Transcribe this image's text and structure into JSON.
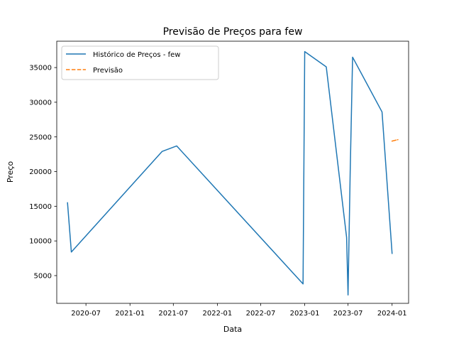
{
  "chart_data": {
    "type": "line",
    "title": "Previsão de Preços para few",
    "xlabel": "Data",
    "ylabel": "Preço",
    "xlim": [
      "2020-03-01",
      "2024-03-10"
    ],
    "ylim": [
      1000,
      38800
    ],
    "x_ticks": [
      {
        "date": "2020-07-01",
        "label": "2020-07"
      },
      {
        "date": "2021-01-01",
        "label": "2021-01"
      },
      {
        "date": "2021-07-01",
        "label": "2021-07"
      },
      {
        "date": "2022-01-01",
        "label": "2022-01"
      },
      {
        "date": "2022-07-01",
        "label": "2022-07"
      },
      {
        "date": "2023-01-01",
        "label": "2023-01"
      },
      {
        "date": "2023-07-01",
        "label": "2023-07"
      },
      {
        "date": "2024-01-01",
        "label": "2024-01"
      }
    ],
    "y_ticks": [
      5000,
      10000,
      15000,
      20000,
      25000,
      30000,
      35000
    ],
    "grid": false,
    "legend_position": "top-left",
    "series": [
      {
        "name": "Histórico de Preços - few",
        "color": "#1f77b4",
        "style": "solid",
        "points": [
          {
            "x": "2020-04-15",
            "y": 15500
          },
          {
            "x": "2020-05-01",
            "y": 8400
          },
          {
            "x": "2021-05-15",
            "y": 22900
          },
          {
            "x": "2021-07-15",
            "y": 23700
          },
          {
            "x": "2022-12-25",
            "y": 3800
          },
          {
            "x": "2023-01-01",
            "y": 37300
          },
          {
            "x": "2023-04-01",
            "y": 35100
          },
          {
            "x": "2023-06-25",
            "y": 10500
          },
          {
            "x": "2023-07-01",
            "y": 2200
          },
          {
            "x": "2023-07-10",
            "y": 20000
          },
          {
            "x": "2023-07-20",
            "y": 36500
          },
          {
            "x": "2023-11-20",
            "y": 28600
          },
          {
            "x": "2024-01-01",
            "y": 8200
          }
        ]
      },
      {
        "name": "Previsão",
        "color": "#ff7f0e",
        "style": "dashed",
        "points": [
          {
            "x": "2024-01-01",
            "y": 24400
          },
          {
            "x": "2024-01-25",
            "y": 24600
          }
        ]
      }
    ]
  }
}
